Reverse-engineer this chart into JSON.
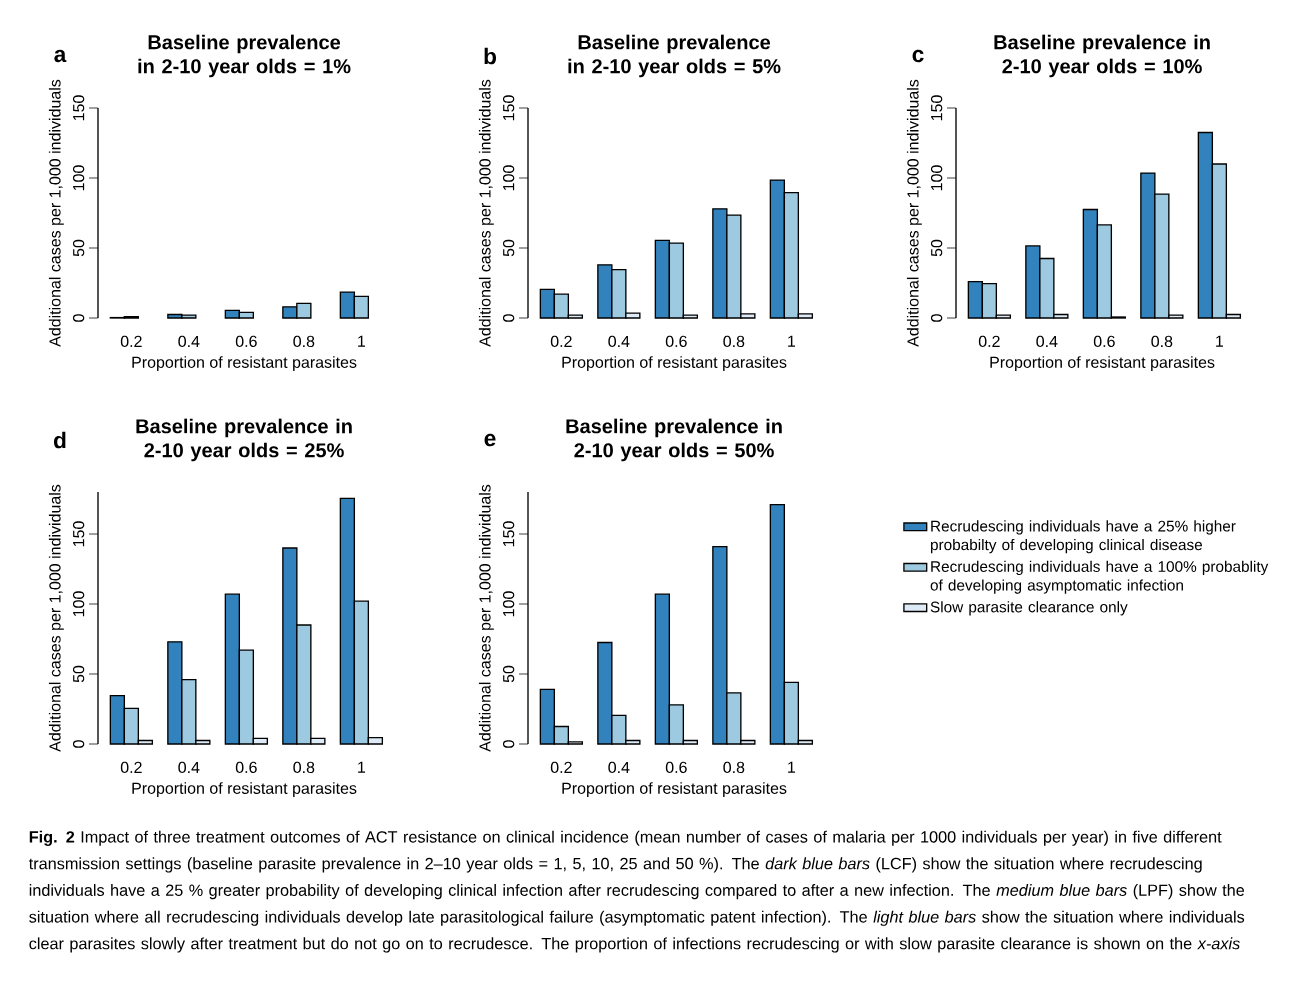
{
  "chart_data": [
    {
      "type": "bar",
      "title": "Baseline prevalence in 2-10 year olds = 1%",
      "xlabel": "Proportion of resistant parasites",
      "ylabel": "Additional cases per 1,000 individuals",
      "categories": [
        "0.2",
        "0.4",
        "0.6",
        "0.8",
        "1"
      ],
      "ylim": [
        0,
        150
      ],
      "yticks": [
        0,
        50,
        100,
        150
      ],
      "annotations": [
        "a"
      ],
      "series": [
        {
          "color": "#3182bd",
          "values": [
            0.3,
            2.5,
            5.5,
            8,
            18.5
          ]
        },
        {
          "color": "#9ecae1",
          "values": [
            1,
            2,
            4,
            10.5,
            15.5
          ]
        },
        {
          "color": "#deebf7",
          "values": [
            null,
            null,
            null,
            null,
            null
          ]
        }
      ]
    },
    {
      "type": "bar",
      "title": "Baseline prevalence in 2-10 year olds = 5%",
      "xlabel": "Proportion of resistant parasites",
      "ylabel": "Additional cases per 1,000 individuals",
      "categories": [
        "0.2",
        "0.4",
        "0.6",
        "0.8",
        "1"
      ],
      "ylim": [
        0,
        150
      ],
      "yticks": [
        0,
        50,
        100,
        150
      ],
      "annotations": [
        "b"
      ],
      "series": [
        {
          "color": "#3182bd",
          "values": [
            20.5,
            38,
            55.5,
            78,
            98.5
          ]
        },
        {
          "color": "#9ecae1",
          "values": [
            17,
            34.5,
            53.5,
            73.5,
            89.5
          ]
        },
        {
          "color": "#deebf7",
          "values": [
            2,
            3.5,
            2,
            3,
            3
          ]
        }
      ]
    },
    {
      "type": "bar",
      "title": "Baseline prevalence in 2-10 year olds = 10%",
      "xlabel": "Proportion of resistant parasites",
      "ylabel": "Additional cases per 1,000 individuals",
      "categories": [
        "0.2",
        "0.4",
        "0.6",
        "0.8",
        "1"
      ],
      "ylim": [
        0,
        150
      ],
      "yticks": [
        0,
        50,
        100,
        150
      ],
      "annotations": [
        "c"
      ],
      "series": [
        {
          "color": "#3182bd",
          "values": [
            26,
            51.5,
            77.5,
            103.5,
            132.5
          ]
        },
        {
          "color": "#9ecae1",
          "values": [
            24.5,
            42.5,
            66.5,
            88.5,
            110
          ]
        },
        {
          "color": "#deebf7",
          "values": [
            2,
            2.5,
            0.7,
            2,
            2.5
          ]
        }
      ]
    },
    {
      "type": "bar",
      "title": "Baseline prevalence in 2-10 year olds = 25%",
      "xlabel": "Proportion of resistant parasites",
      "ylabel": "Additional cases per 1,000 individuals",
      "categories": [
        "0.2",
        "0.4",
        "0.6",
        "0.8",
        "1"
      ],
      "ylim": [
        0,
        180
      ],
      "yticks": [
        0,
        50,
        100,
        150
      ],
      "annotations": [
        "d"
      ],
      "series": [
        {
          "color": "#3182bd",
          "values": [
            34.5,
            73,
            107,
            140,
            175.5
          ]
        },
        {
          "color": "#9ecae1",
          "values": [
            25.5,
            46,
            67,
            85,
            102
          ]
        },
        {
          "color": "#deebf7",
          "values": [
            2.5,
            2.5,
            4,
            4,
            4.5
          ]
        }
      ]
    },
    {
      "type": "bar",
      "title": "Baseline prevalence in 2-10 year olds = 50%",
      "xlabel": "Proportion of resistant parasites",
      "ylabel": "Additional cases per 1,000 individuals",
      "categories": [
        "0.2",
        "0.4",
        "0.6",
        "0.8",
        "1"
      ],
      "ylim": [
        0,
        180
      ],
      "yticks": [
        0,
        50,
        100,
        150
      ],
      "legend": "right",
      "annotations": [
        "e",
        "**Fig. 2** Impact of three treatment outcomes of ACT resistance on clinical incidence (mean number of cases of malaria per 1000 individuals per year) in five different transmission settings (baseline parasite prevalence in 2–10 year olds = 1, 5, 10, 25 and 50 %). The *dark blue bars* (LCF) show the situation where recrudescing individuals have a 25 % greater probability of developing clinical infection after recrudescing compared to after a new infection. The *medium blue bars* (LPF) show the situation where all recrudescing individuals develop late parasitological failure (asymptomatic patent infection). The *light blue bars* show the situation where individuals clear parasites slowly after treatment but do not go on to recrudesce. The proportion of infections recrudescing or with slow parasite clearance is shown on the *x-axis*"
      ],
      "series": [
        {
          "name": "Recrudescing individuals have a 25% higher probabilty of developing clinical disease",
          "color": "#3182bd",
          "values": [
            39,
            72.5,
            107,
            141,
            171
          ]
        },
        {
          "name": "Recrudescing individuals have a 100% probablity of developing asymptomatic infection",
          "color": "#9ecae1",
          "values": [
            12.5,
            20.5,
            28,
            36.5,
            44
          ]
        },
        {
          "name": "Slow parasite clearance only",
          "color": "#deebf7",
          "values": [
            1.5,
            2.5,
            2.5,
            2.5,
            2.5
          ]
        }
      ]
    }
  ]
}
